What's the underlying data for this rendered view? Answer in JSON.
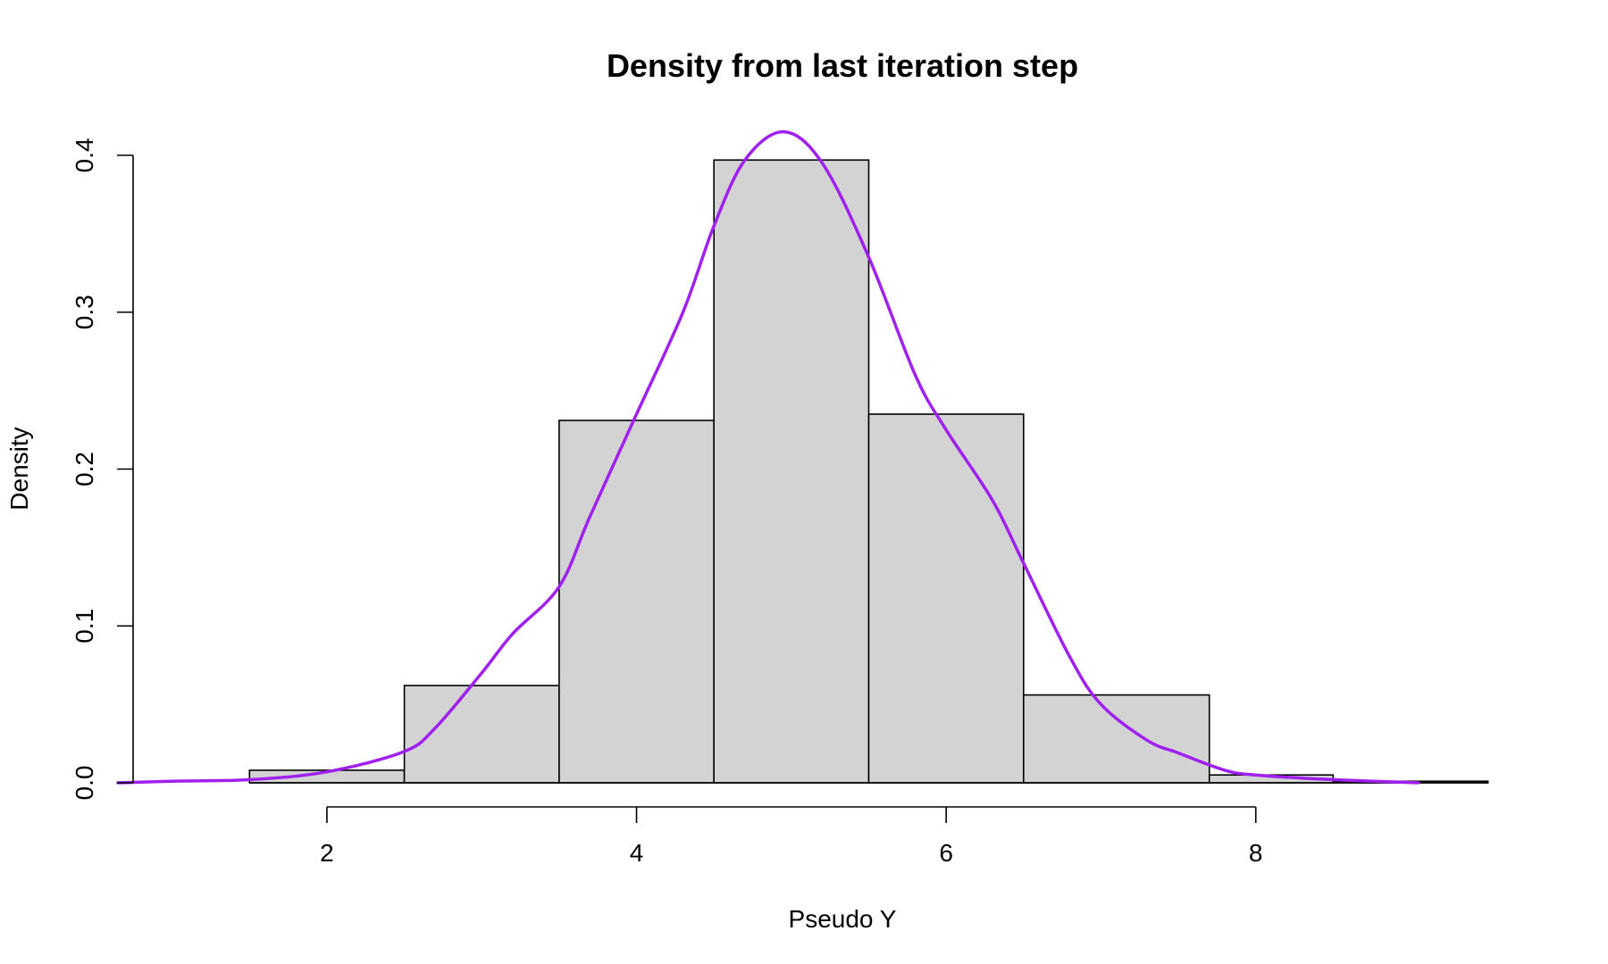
{
  "chart_data": {
    "type": "bar",
    "title": "Density from last iteration step",
    "xlabel": "Pseudo Y",
    "ylabel": "Density",
    "xlim": [
      0.65,
      9.6
    ],
    "ylim": [
      0,
      0.42
    ],
    "x_ticks": [
      2,
      4,
      6,
      8
    ],
    "x_tick_labels": [
      "2",
      "4",
      "6",
      "8"
    ],
    "y_ticks": [
      0.0,
      0.1,
      0.2,
      0.3,
      0.4
    ],
    "y_tick_labels": [
      "0.0",
      "0.1",
      "0.2",
      "0.3",
      "0.4"
    ],
    "grid": false,
    "histogram": {
      "bins": [
        {
          "x0": 1.5,
          "x1": 2.5,
          "density": 0.008
        },
        {
          "x0": 2.5,
          "x1": 3.5,
          "density": 0.062
        },
        {
          "x0": 3.5,
          "x1": 4.5,
          "density": 0.231
        },
        {
          "x0": 4.5,
          "x1": 5.5,
          "density": 0.397
        },
        {
          "x0": 5.5,
          "x1": 6.5,
          "density": 0.235
        },
        {
          "x0": 6.5,
          "x1": 7.7,
          "density": 0.056
        },
        {
          "x0": 7.7,
          "x1": 8.5,
          "density": 0.005
        },
        {
          "x0": 8.5,
          "x1": 9.5,
          "density": 0.001
        }
      ]
    },
    "series": [
      {
        "color": "#a020f0",
        "x": [
          0.65,
          1.0,
          1.5,
          2.0,
          2.5,
          2.7,
          3.0,
          3.2,
          3.5,
          3.7,
          4.0,
          4.3,
          4.5,
          4.7,
          4.95,
          5.2,
          5.5,
          5.8,
          6.0,
          6.3,
          6.5,
          6.8,
          7.0,
          7.3,
          7.5,
          7.8,
          8.0,
          8.5,
          9.05
        ],
        "y": [
          0.0,
          0.001,
          0.002,
          0.007,
          0.02,
          0.035,
          0.07,
          0.095,
          0.125,
          0.17,
          0.235,
          0.3,
          0.355,
          0.397,
          0.415,
          0.395,
          0.335,
          0.26,
          0.225,
          0.18,
          0.14,
          0.08,
          0.05,
          0.027,
          0.019,
          0.008,
          0.005,
          0.002,
          0.0
        ]
      }
    ]
  }
}
